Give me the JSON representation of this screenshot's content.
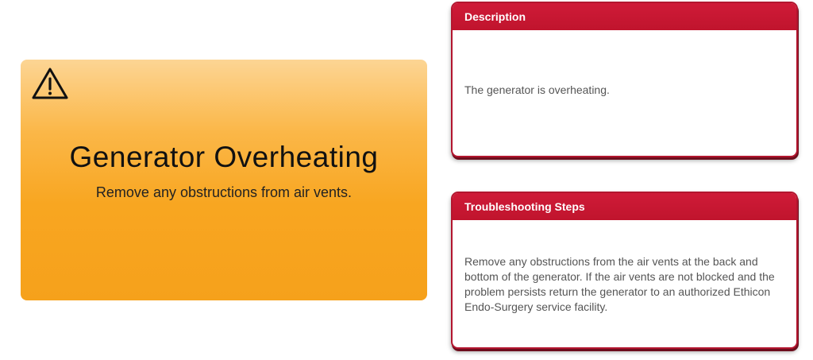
{
  "alert": {
    "icon": "warning-icon",
    "title": "Generator Overheating",
    "subtitle": "Remove any obstructions from air vents.",
    "colors": {
      "gradient_top": "#fcd594",
      "gradient_bottom": "#f6a11b"
    }
  },
  "description": {
    "heading": "Description",
    "text": "The generator is overheating."
  },
  "troubleshooting": {
    "heading": "Troubleshooting Steps",
    "text": "Remove any obstructions from the air vents at the back and bottom of the generator. If the air vents are not blocked and the problem persists return the generator to an authorized Ethicon Endo-Surgery service facility."
  },
  "colors": {
    "card_accent": "#c0142d"
  }
}
